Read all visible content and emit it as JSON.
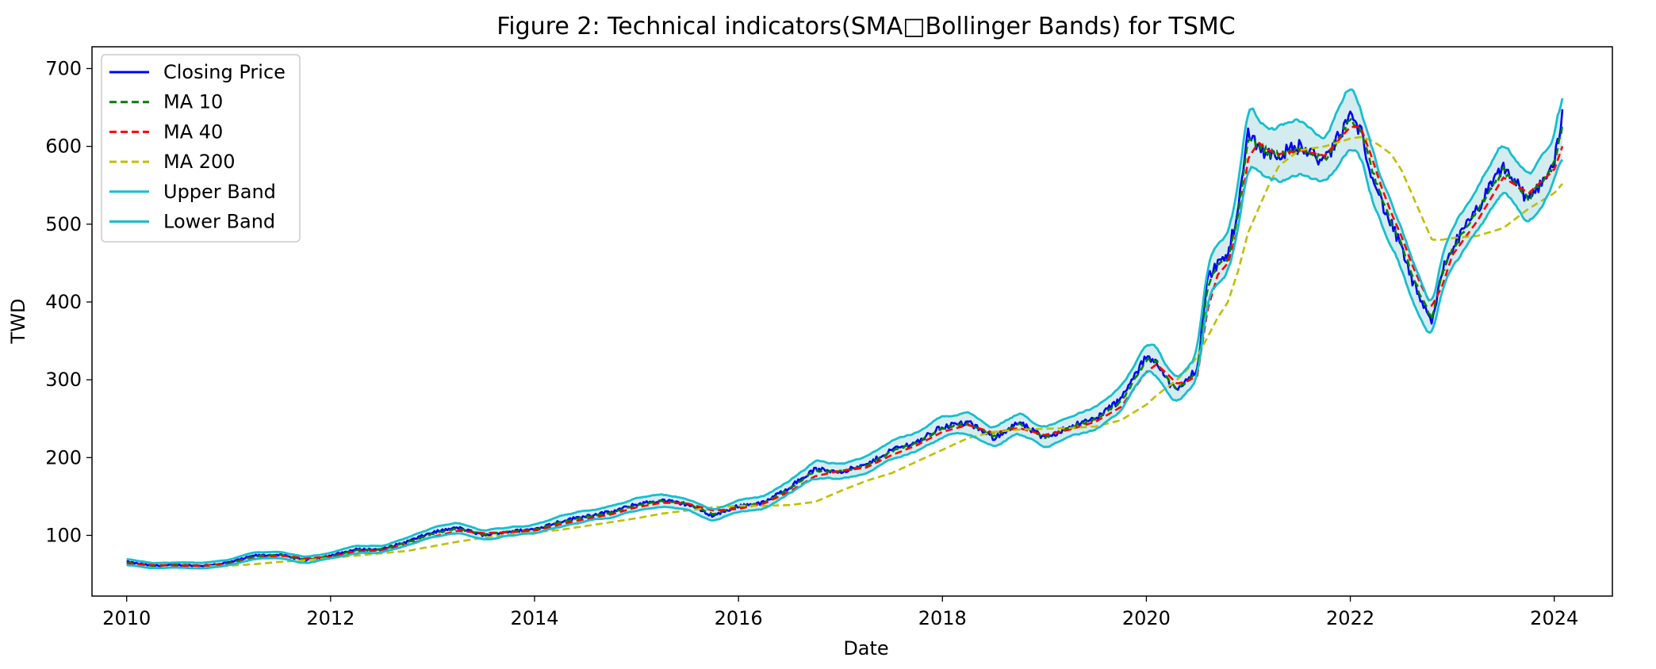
{
  "chart_data": {
    "type": "line",
    "title": "Figure 2: Technical indicators(SMA□Bollinger Bands) for TSMC",
    "xlabel": "Date",
    "ylabel": "TWD",
    "xlim": [
      2009.66,
      2024.57
    ],
    "ylim": [
      22,
      728
    ],
    "x_ticks": [
      2010,
      2012,
      2014,
      2016,
      2018,
      2020,
      2022,
      2024
    ],
    "x_tick_labels": [
      "2010",
      "2012",
      "2014",
      "2016",
      "2018",
      "2020",
      "2022",
      "2024"
    ],
    "y_ticks": [
      100,
      200,
      300,
      400,
      500,
      600,
      700
    ],
    "y_tick_labels": [
      "100",
      "200",
      "300",
      "400",
      "500",
      "600",
      "700"
    ],
    "grid": false,
    "legend_position": "upper-left",
    "colors": {
      "closing": "#0000ff",
      "ma10": "#008000",
      "ma40": "#ff0000",
      "ma200": "#bfbf00",
      "band": "#17becf",
      "band_fill": "#b7dfe4"
    },
    "band_width_pct": 0.055,
    "ma200_start": 2010.8,
    "x": [
      2010.0,
      2010.25,
      2010.5,
      2010.75,
      2011.0,
      2011.25,
      2011.5,
      2011.75,
      2012.0,
      2012.25,
      2012.5,
      2012.75,
      2013.0,
      2013.25,
      2013.5,
      2013.75,
      2014.0,
      2014.25,
      2014.5,
      2014.75,
      2015.0,
      2015.25,
      2015.5,
      2015.75,
      2016.0,
      2016.25,
      2016.5,
      2016.75,
      2017.0,
      2017.25,
      2017.5,
      2017.75,
      2018.0,
      2018.25,
      2018.5,
      2018.75,
      2019.0,
      2019.25,
      2019.5,
      2019.75,
      2020.0,
      2020.1,
      2020.2,
      2020.3,
      2020.4,
      2020.5,
      2020.6,
      2020.7,
      2020.8,
      2020.9,
      2021.0,
      2021.1,
      2021.2,
      2021.3,
      2021.5,
      2021.75,
      2022.0,
      2022.1,
      2022.2,
      2022.3,
      2022.4,
      2022.5,
      2022.6,
      2022.7,
      2022.8,
      2022.9,
      2023.0,
      2023.25,
      2023.5,
      2023.75,
      2024.0,
      2024.08
    ],
    "series": [
      {
        "name": "Closing Price",
        "values": [
          66,
          61,
          62,
          61,
          65,
          74,
          75,
          68,
          74,
          82,
          82,
          92,
          104,
          110,
          100,
          105,
          108,
          118,
          125,
          130,
          140,
          145,
          140,
          125,
          138,
          142,
          162,
          185,
          182,
          190,
          210,
          220,
          240,
          245,
          225,
          245,
          225,
          240,
          250,
          275,
          330,
          325,
          300,
          285,
          300,
          315,
          430,
          450,
          460,
          520,
          620,
          600,
          590,
          590,
          600,
          580,
          640,
          620,
          570,
          530,
          500,
          470,
          430,
          400,
          370,
          440,
          470,
          520,
          575,
          530,
          580,
          640
        ]
      },
      {
        "name": "MA 10",
        "values": [
          65,
          61,
          62,
          61,
          64,
          73,
          75,
          69,
          73,
          81,
          82,
          91,
          102,
          109,
          101,
          105,
          107,
          117,
          124,
          129,
          139,
          144,
          141,
          127,
          137,
          142,
          160,
          183,
          182,
          189,
          208,
          219,
          238,
          244,
          227,
          243,
          226,
          239,
          249,
          272,
          325,
          324,
          302,
          288,
          299,
          312,
          420,
          446,
          456,
          512,
          610,
          602,
          592,
          590,
          598,
          583,
          635,
          622,
          575,
          535,
          503,
          475,
          437,
          405,
          377,
          436,
          468,
          517,
          570,
          532,
          577,
          625
        ]
      },
      {
        "name": "MA 40",
        "values": [
          64,
          62,
          61,
          61,
          63,
          70,
          74,
          71,
          72,
          79,
          81,
          88,
          98,
          106,
          103,
          104,
          106,
          114,
          121,
          127,
          136,
          142,
          141,
          132,
          134,
          141,
          156,
          176,
          183,
          187,
          203,
          216,
          233,
          242,
          232,
          238,
          229,
          236,
          246,
          265,
          310,
          320,
          308,
          295,
          298,
          305,
          390,
          435,
          450,
          495,
          585,
          605,
          595,
          590,
          595,
          588,
          625,
          625,
          590,
          550,
          515,
          485,
          450,
          420,
          395,
          420,
          460,
          505,
          560,
          540,
          570,
          600
        ]
      },
      {
        "name": "MA 200",
        "values": [
          null,
          null,
          null,
          60,
          61,
          63,
          66,
          68,
          71,
          74,
          77,
          80,
          86,
          92,
          97,
          101,
          104,
          107,
          112,
          117,
          122,
          128,
          132,
          136,
          138,
          138,
          139,
          143,
          157,
          170,
          180,
          195,
          210,
          225,
          233,
          236,
          237,
          238,
          240,
          248,
          268,
          280,
          290,
          300,
          313,
          330,
          355,
          380,
          400,
          440,
          490,
          520,
          550,
          575,
          595,
          600,
          610,
          612,
          608,
          600,
          590,
          570,
          540,
          510,
          480,
          480,
          482,
          485,
          495,
          520,
          540,
          552
        ]
      }
    ]
  }
}
